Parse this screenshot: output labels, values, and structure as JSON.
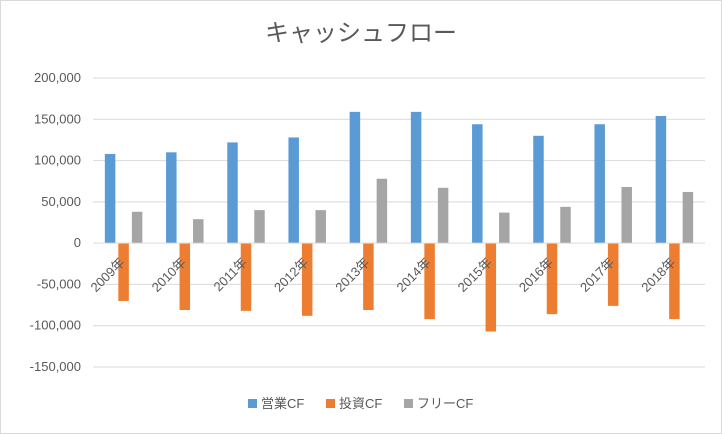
{
  "chart_data": {
    "type": "bar",
    "title": "キャッシュフロー",
    "categories": [
      "2009年",
      "2010年",
      "2011年",
      "2012年",
      "2013年",
      "2014年",
      "2015年",
      "2016年",
      "2017年",
      "2018年"
    ],
    "series": [
      {
        "name": "営業CF",
        "color": "#5b9bd5",
        "values": [
          108000,
          110000,
          122000,
          128000,
          159000,
          159000,
          144000,
          130000,
          144000,
          154000
        ]
      },
      {
        "name": "投資CF",
        "color": "#ed7d31",
        "values": [
          -70000,
          -81000,
          -82000,
          -88000,
          -81000,
          -92000,
          -107000,
          -86000,
          -76000,
          -92000
        ]
      },
      {
        "name": "フリーCF",
        "color": "#a5a5a5",
        "values": [
          38000,
          29000,
          40000,
          40000,
          78000,
          67000,
          37000,
          44000,
          68000,
          62000
        ]
      }
    ],
    "ylim": [
      -150000,
      200000
    ],
    "yticks": [
      200000,
      150000,
      100000,
      50000,
      0,
      -50000,
      -100000,
      -150000
    ],
    "ytick_labels": [
      "200,000",
      "150,000",
      "100,000",
      "50,000",
      "0",
      "-50,000",
      "-100,000",
      "-150,000"
    ],
    "grid": true,
    "legend_position": "bottom"
  }
}
